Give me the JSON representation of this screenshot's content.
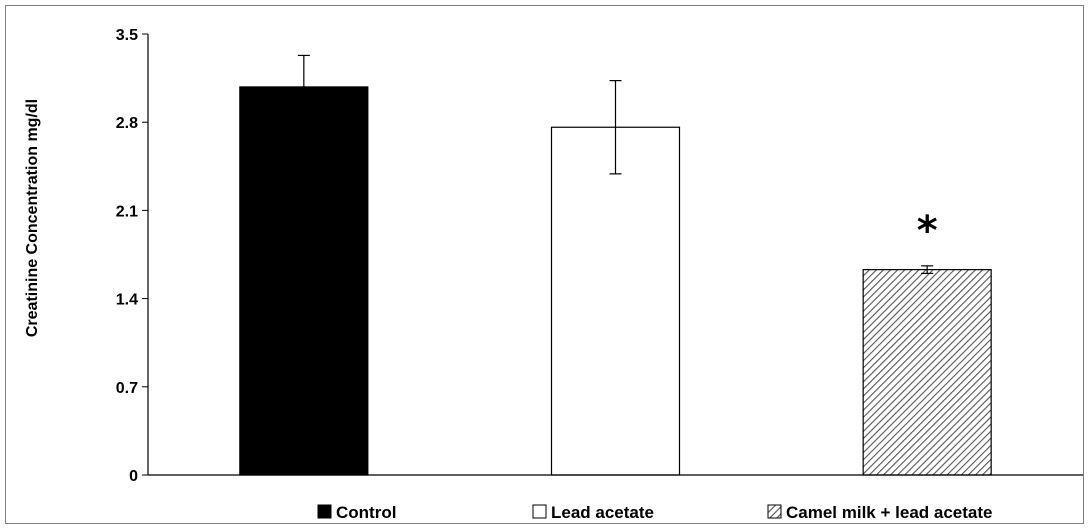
{
  "chart_data": {
    "type": "bar",
    "title": "",
    "xlabel": "",
    "ylabel": "Creatinine Concentration mg/dl",
    "ylim": [
      0,
      3.5
    ],
    "yticks": [
      "0",
      "0.7",
      "1.4",
      "2.1",
      "2.8",
      "3.5"
    ],
    "categories": [
      "Control",
      "Lead acetate",
      "Camel milk + lead acetate"
    ],
    "values": [
      3.08,
      2.76,
      1.63
    ],
    "errors": [
      0.25,
      0.37,
      0.03
    ],
    "fills": [
      "#000000",
      "#ffffff",
      "hatched"
    ],
    "annotations": [
      {
        "category": "Camel milk + lead acetate",
        "text": "*"
      }
    ],
    "legend": [
      "Control",
      "Lead acetate",
      "Camel milk + lead acetate"
    ],
    "legend_placement": "bottom",
    "grid": false
  }
}
